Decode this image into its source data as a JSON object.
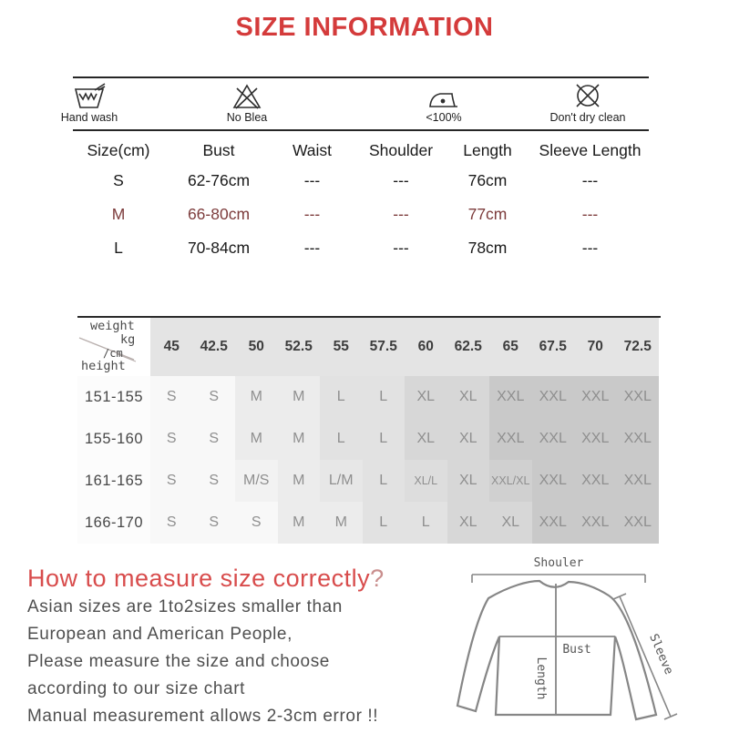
{
  "title": "SIZE INFORMATION",
  "colors": {
    "title_red": "#d43b3b",
    "highlight_maroon": "#7d3c3c",
    "heading_red": "#d84c4c",
    "question_gray_red": "#c98f8e",
    "body_text": "#4f4f4f"
  },
  "care": {
    "items": [
      {
        "icon": "hand-wash-icon",
        "label": "Hand wash"
      },
      {
        "icon": "no-bleach-icon",
        "label": "No Blea"
      },
      {
        "icon": "iron-icon",
        "label": "<100%"
      },
      {
        "icon": "dont-dry-clean-icon",
        "label": "Don't dry clean"
      }
    ]
  },
  "size_table": {
    "headers": [
      "Size(cm)",
      "Bust",
      "Waist",
      "Shoulder",
      "Length",
      "Sleeve Length"
    ],
    "rows": [
      {
        "cells": [
          "S",
          "62-76cm",
          "---",
          "---",
          "76cm",
          "---"
        ],
        "highlight": false
      },
      {
        "cells": [
          "M",
          "66-80cm",
          "---",
          "---",
          "77cm",
          "---"
        ],
        "highlight": true
      },
      {
        "cells": [
          "L",
          "70-84cm",
          "---",
          "---",
          "78cm",
          "---"
        ],
        "highlight": false
      }
    ]
  },
  "matrix": {
    "corner": {
      "weight": "weight",
      "kg": "kg",
      "cm": "/cm",
      "height": "height"
    },
    "weights": [
      "45",
      "42.5",
      "50",
      "52.5",
      "55",
      "57.5",
      "60",
      "62.5",
      "65",
      "67.5",
      "70",
      "72.5"
    ],
    "rows": [
      {
        "height": "151-155",
        "cells": [
          "S",
          "S",
          "M",
          "M",
          "L",
          "L",
          "XL",
          "XL",
          "XXL",
          "XXL",
          "XXL",
          "XXL"
        ]
      },
      {
        "height": "155-160",
        "cells": [
          "S",
          "S",
          "M",
          "M",
          "L",
          "L",
          "XL",
          "XL",
          "XXL",
          "XXL",
          "XXL",
          "XXL"
        ]
      },
      {
        "height": "161-165",
        "cells": [
          "S",
          "S",
          "M/S",
          "M",
          "L/M",
          "L",
          "XL/L",
          "XL",
          "XXL/XL",
          "XXL",
          "XXL",
          "XXL"
        ]
      },
      {
        "height": "166-170",
        "cells": [
          "S",
          "S",
          "S",
          "M",
          "M",
          "L",
          "L",
          "XL",
          "XL",
          "XXL",
          "XXL",
          "XXL"
        ]
      }
    ],
    "shade_colors": {
      "S": "#f8f8f8",
      "M": "#ececec",
      "L": "#e2e2e2",
      "XL": "#d7d7d7",
      "XXL": "#c9c9c9",
      "M/S": "#f2f2f2",
      "L/M": "#e7e7e7",
      "XL/L": "#dddddd",
      "XXL/XL": "#d0d0d0"
    },
    "cell_text_color": "#8f8f8f"
  },
  "measure": {
    "heading": "How to measure size correctly",
    "question_mark": "?",
    "lines": [
      "Asian sizes are 1to2sizes smaller than",
      "European and American People,",
      "Please measure the size and choose",
      "according to our size chart",
      "Manual measurement allows 2-3cm error !!"
    ]
  },
  "diagram": {
    "shoulder_label": "Shouler",
    "bust_label": "Bust",
    "length_label": "Length",
    "sleeve_label": "Sleeve"
  }
}
